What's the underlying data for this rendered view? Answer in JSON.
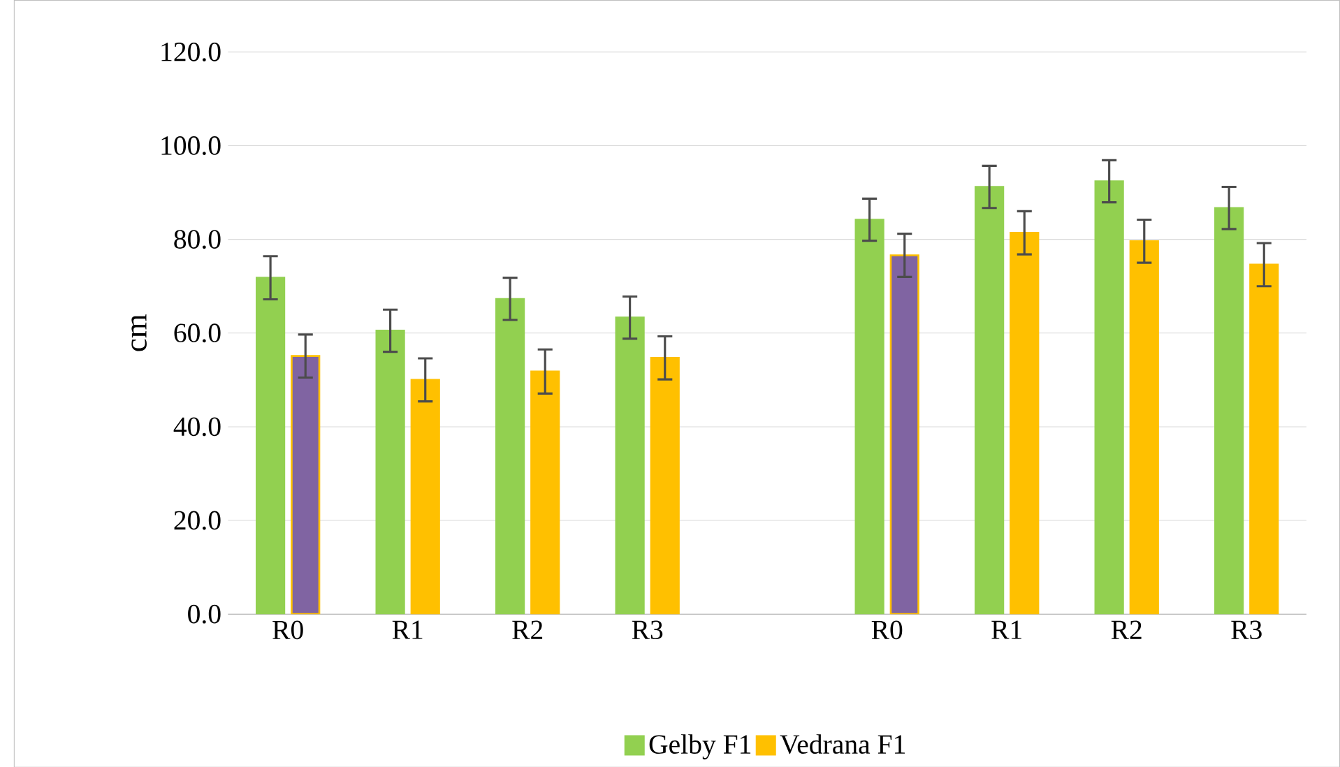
{
  "chart_data": {
    "type": "bar",
    "ylabel": "cm",
    "categories": [
      "R0",
      "R1",
      "R2",
      "R3",
      null,
      "R0",
      "R1",
      "R2",
      "R3"
    ],
    "series": [
      {
        "name": "Gelby F1",
        "color": "#92d050",
        "values": [
          71.8,
          60.5,
          67.3,
          63.3,
          null,
          84.2,
          91.2,
          92.4,
          86.7
        ],
        "errors": [
          4.6,
          4.5,
          4.5,
          4.5,
          null,
          4.5,
          4.5,
          4.5,
          4.5
        ]
      },
      {
        "name": "Vedrana F1",
        "color": "#ffc000",
        "colors": [
          "#8064a2",
          "#ffc000",
          "#ffc000",
          "#ffc000",
          null,
          "#8064a2",
          "#ffc000",
          "#ffc000",
          "#ffc000"
        ],
        "values": [
          55.1,
          50.0,
          51.8,
          54.7,
          null,
          76.6,
          81.4,
          79.6,
          74.6
        ],
        "errors": [
          4.6,
          4.6,
          4.7,
          4.6,
          null,
          4.6,
          4.6,
          4.6,
          4.6
        ]
      }
    ],
    "ylim": [
      0,
      120
    ],
    "yticks": [
      {
        "value": 0,
        "label": "0.0"
      },
      {
        "value": 20,
        "label": "20.0"
      },
      {
        "value": 40,
        "label": "40.0"
      },
      {
        "value": 60,
        "label": "60.0"
      },
      {
        "value": 80,
        "label": "80.0"
      },
      {
        "value": 100,
        "label": "100.0"
      },
      {
        "value": 120,
        "label": "120.0"
      }
    ],
    "grid": "y",
    "legend": "bottom"
  }
}
